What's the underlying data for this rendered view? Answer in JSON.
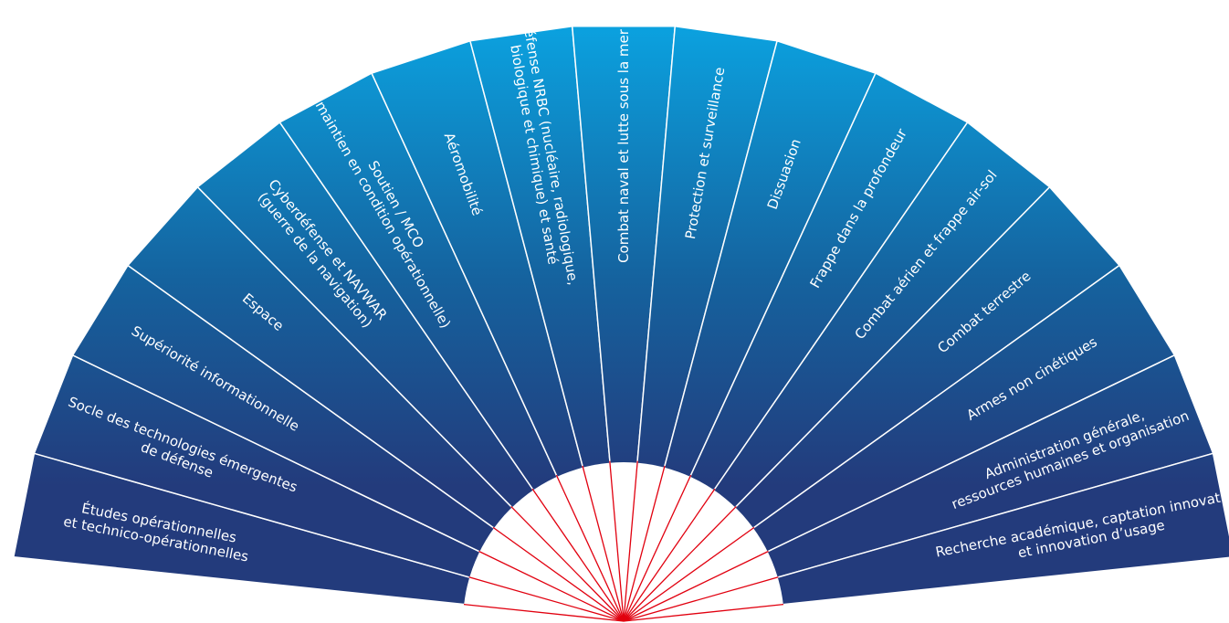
{
  "segments": [
    {
      "lines": [
        "Études opérationnelles",
        "et technico-opérationnelles"
      ]
    },
    {
      "lines": [
        "Socle des technologies émergentes",
        "de défense"
      ]
    },
    {
      "lines": [
        "Supériorité informationnelle"
      ]
    },
    {
      "lines": [
        "Espace"
      ]
    },
    {
      "lines": [
        "Cyberdéfense et NAVWAR",
        "(guerre de la navigation)"
      ]
    },
    {
      "lines": [
        "Soutien / MCO",
        "(maintien en condition opérationnelle)"
      ]
    },
    {
      "lines": [
        "Aéromobilité"
      ]
    },
    {
      "lines": [
        "Défense NRBC (nucléaire, radiologique,",
        "biologique et chimique) et santé"
      ]
    },
    {
      "lines": [
        "Combat naval et lutte sous la mer"
      ]
    },
    {
      "lines": [
        "Protection et surveillance"
      ]
    },
    {
      "lines": [
        "Dissuasion"
      ]
    },
    {
      "lines": [
        "Frappe dans la profondeur"
      ]
    },
    {
      "lines": [
        "Combat aérien et frappe air-sol"
      ]
    },
    {
      "lines": [
        "Combat terrestre"
      ]
    },
    {
      "lines": [
        "Armes non cinétiques"
      ]
    },
    {
      "lines": [
        "Administration générale,",
        "ressources humaines et organisation"
      ]
    },
    {
      "lines": [
        "Recherche académique, captation innovation",
        "et innovation d’usage"
      ]
    }
  ],
  "colors": {
    "blade_top": "#0aa8e6",
    "blade_mid": "#15629e",
    "blade_bottom": "#233b7c",
    "blade_border": "#ffffff",
    "hub_fill": "#ffffff",
    "hub_spokes": "#e1000f"
  }
}
